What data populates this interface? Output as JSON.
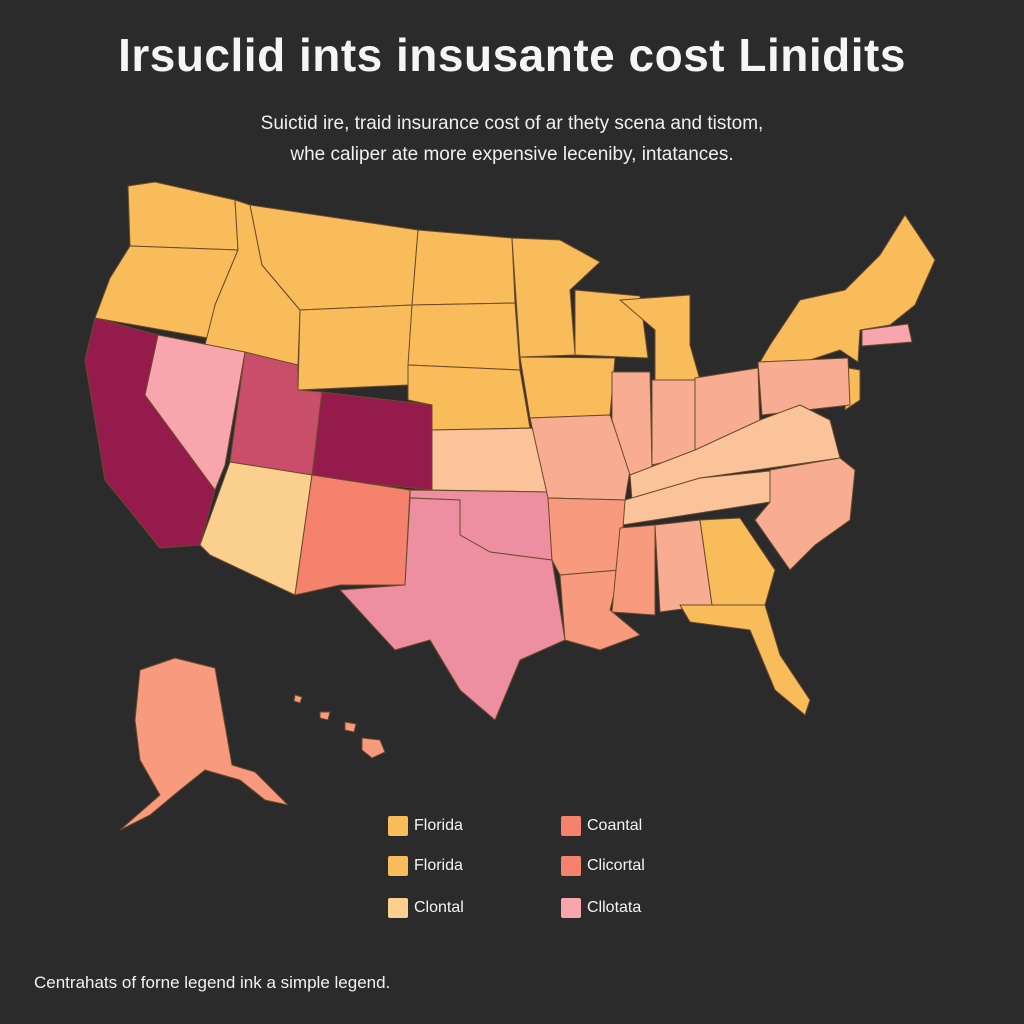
{
  "title": "Irsuclid ints insusante cost Linidits",
  "subtitle_line1": "Suictid ire, traid insurance cost of ar thety scena and tistom,",
  "subtitle_line2": "whe caliper ate more expensive leceniby, intatances.",
  "footnote": "Centrahats of forne legend ink a simple legend.",
  "colors": {
    "background": "#2b2b2b",
    "yellow": "#f9bc5a",
    "light_yellow": "#fbd08e",
    "peach": "#fbc39a",
    "light_salmon": "#f8ad92",
    "salmon": "#f79a7e",
    "coral": "#f5826d",
    "pink": "#ee8ea1",
    "light_pink": "#f8a5ad",
    "mauve": "#c84e6a",
    "maroon": "#951b4c"
  },
  "legend": [
    {
      "label": "Florida",
      "color": "#f9bc5a"
    },
    {
      "label": "Coantal",
      "color": "#f5826d"
    },
    {
      "label": "Florida",
      "color": "#f9bc5a"
    },
    {
      "label": "Clicortal",
      "color": "#f5826d"
    },
    {
      "label": "Clontal",
      "color": "#fbd08e"
    },
    {
      "label": "Cllotata",
      "color": "#f8a5ad"
    }
  ]
}
